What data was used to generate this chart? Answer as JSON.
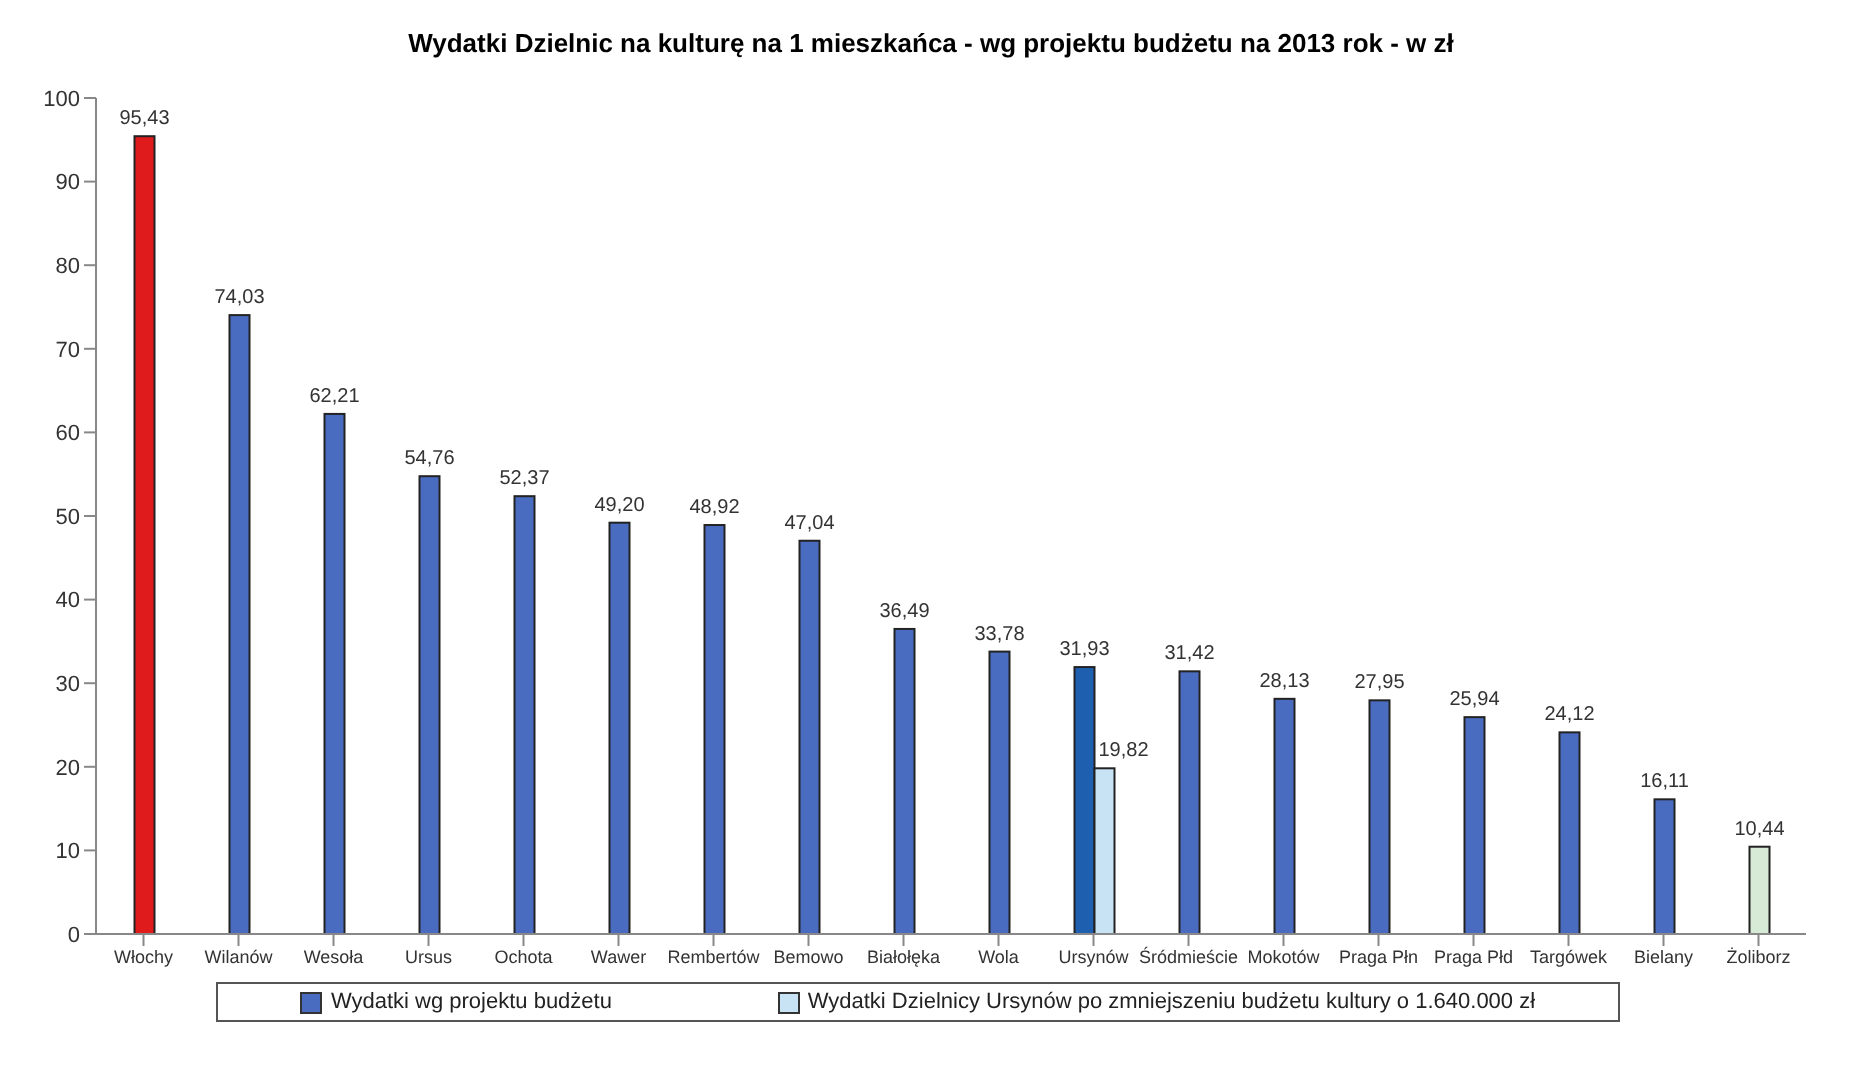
{
  "chart_data": {
    "type": "bar",
    "title": "Wydatki Dzielnic na kulturę na 1 mieszkańca - wg projektu budżetu na 2013 rok - w zł",
    "categories": [
      "Włochy",
      "Wilanów",
      "Wesoła",
      "Ursus",
      "Ochota",
      "Wawer",
      "Rembertów",
      "Bemowo",
      "Białołęka",
      "Wola",
      "Ursynów",
      "Śródmieście",
      "Mokotów",
      "Praga Płn",
      "Praga Płd",
      "Targówek",
      "Bielany",
      "Żoliborz"
    ],
    "series": [
      {
        "name": "Wydatki wg projektu budżetu",
        "color": "#4a6cc0",
        "colors": [
          "#e01b1b",
          "#4a6cc0",
          "#4a6cc0",
          "#4a6cc0",
          "#4a6cc0",
          "#4a6cc0",
          "#4a6cc0",
          "#4a6cc0",
          "#4a6cc0",
          "#4a6cc0",
          "#1f5fb0",
          "#4a6cc0",
          "#4a6cc0",
          "#4a6cc0",
          "#4a6cc0",
          "#4a6cc0",
          "#4a6cc0",
          "#d6ead6"
        ],
        "values": [
          95.43,
          74.03,
          62.21,
          54.76,
          52.37,
          49.2,
          48.92,
          47.04,
          36.49,
          33.78,
          31.93,
          31.42,
          28.13,
          27.95,
          25.94,
          24.12,
          16.11,
          10.44
        ],
        "value_labels": [
          "95,43",
          "74,03",
          "62,21",
          "54,76",
          "52,37",
          "49,20",
          "48,92",
          "47,04",
          "36,49",
          "33,78",
          "31,93",
          "31,42",
          "28,13",
          "27,95",
          "25,94",
          "24,12",
          "16,11",
          "10,44"
        ]
      },
      {
        "name": "Wydatki Dzielnicy Ursynów po zmniejszeniu budżetu kultury o 1.640.000 zł",
        "color": "#c8e4f4",
        "values": [
          null,
          null,
          null,
          null,
          null,
          null,
          null,
          null,
          null,
          null,
          19.82,
          null,
          null,
          null,
          null,
          null,
          null,
          null
        ],
        "value_labels": [
          null,
          null,
          null,
          null,
          null,
          null,
          null,
          null,
          null,
          null,
          "19,82",
          null,
          null,
          null,
          null,
          null,
          null,
          null
        ]
      }
    ],
    "ylim": [
      0,
      100
    ],
    "yticks": [
      0,
      10,
      20,
      30,
      40,
      50,
      60,
      70,
      80,
      90,
      100
    ],
    "grid": false,
    "legend": "bottom"
  }
}
